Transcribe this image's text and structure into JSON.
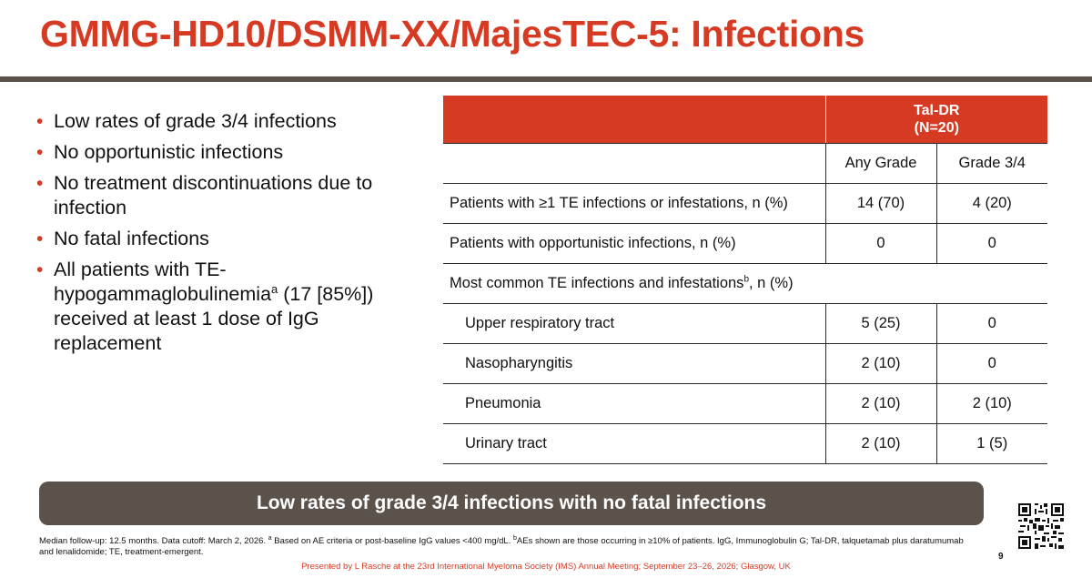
{
  "slide": {
    "title": "GMMG-HD10/DSMM-XX/MajesTEC-5: Infections",
    "page_number": "9"
  },
  "bullets": [
    {
      "text": "Low rates of grade 3/4 infections"
    },
    {
      "text": "No opportunistic infections"
    },
    {
      "text": "No treatment discontinuations due to infection"
    },
    {
      "text": "No fatal infections"
    },
    {
      "text_before": "All patients with TE-hypogammaglobulinemia",
      "sup": "a",
      "text_after": " (17 [85%]) received at least 1 dose of IgG replacement"
    }
  ],
  "table": {
    "group_header_line1": "Tal-DR",
    "group_header_line2": "(N=20)",
    "col_any": "Any Grade",
    "col_g34": "Grade 3/4",
    "rows": [
      {
        "label": "Patients with ≥1 TE infections or infestations, n (%)",
        "any": "14 (70)",
        "g34": "4 (20)"
      },
      {
        "label": "Patients with opportunistic infections, n (%)",
        "any": "0",
        "g34": "0"
      }
    ],
    "section_label_before": "Most common TE infections and infestations",
    "section_label_sup": "b",
    "section_label_after": ", n (%)",
    "sub_rows": [
      {
        "label": "Upper respiratory tract",
        "any": "5 (25)",
        "g34": "0"
      },
      {
        "label": "Nasopharyngitis",
        "any": "2 (10)",
        "g34": "0"
      },
      {
        "label": "Pneumonia",
        "any": "2 (10)",
        "g34": "2 (10)"
      },
      {
        "label": "Urinary tract",
        "any": "2 (10)",
        "g34": "1 (5)"
      }
    ]
  },
  "banner": "Low rates of grade 3/4 infections with no fatal infections",
  "footnote": {
    "part1": "Median follow-up: 12.5 months. Data cutoff: March 2, 2026. ",
    "sup_a": "a",
    "part2": " Based on AE criteria or post-baseline IgG values <400 mg/dL. ",
    "sup_b": "b",
    "part3": "AEs shown are those occurring in ≥10% of patients. IgG, Immunoglobulin G; Tal-DR, talquetamab plus daratumumab and lenalidomide; TE, treatment-emergent."
  },
  "presented_by": "Presented by L Rasche at the 23rd International Myeloma Society (IMS) Annual Meeting; September 23–26, 2026; Glasgow, UK",
  "colors": {
    "accent": "#d63a22",
    "banner_bg": "#5b524c",
    "rule": "#5b524c"
  },
  "icons": {
    "qr": "qr-code-icon"
  }
}
